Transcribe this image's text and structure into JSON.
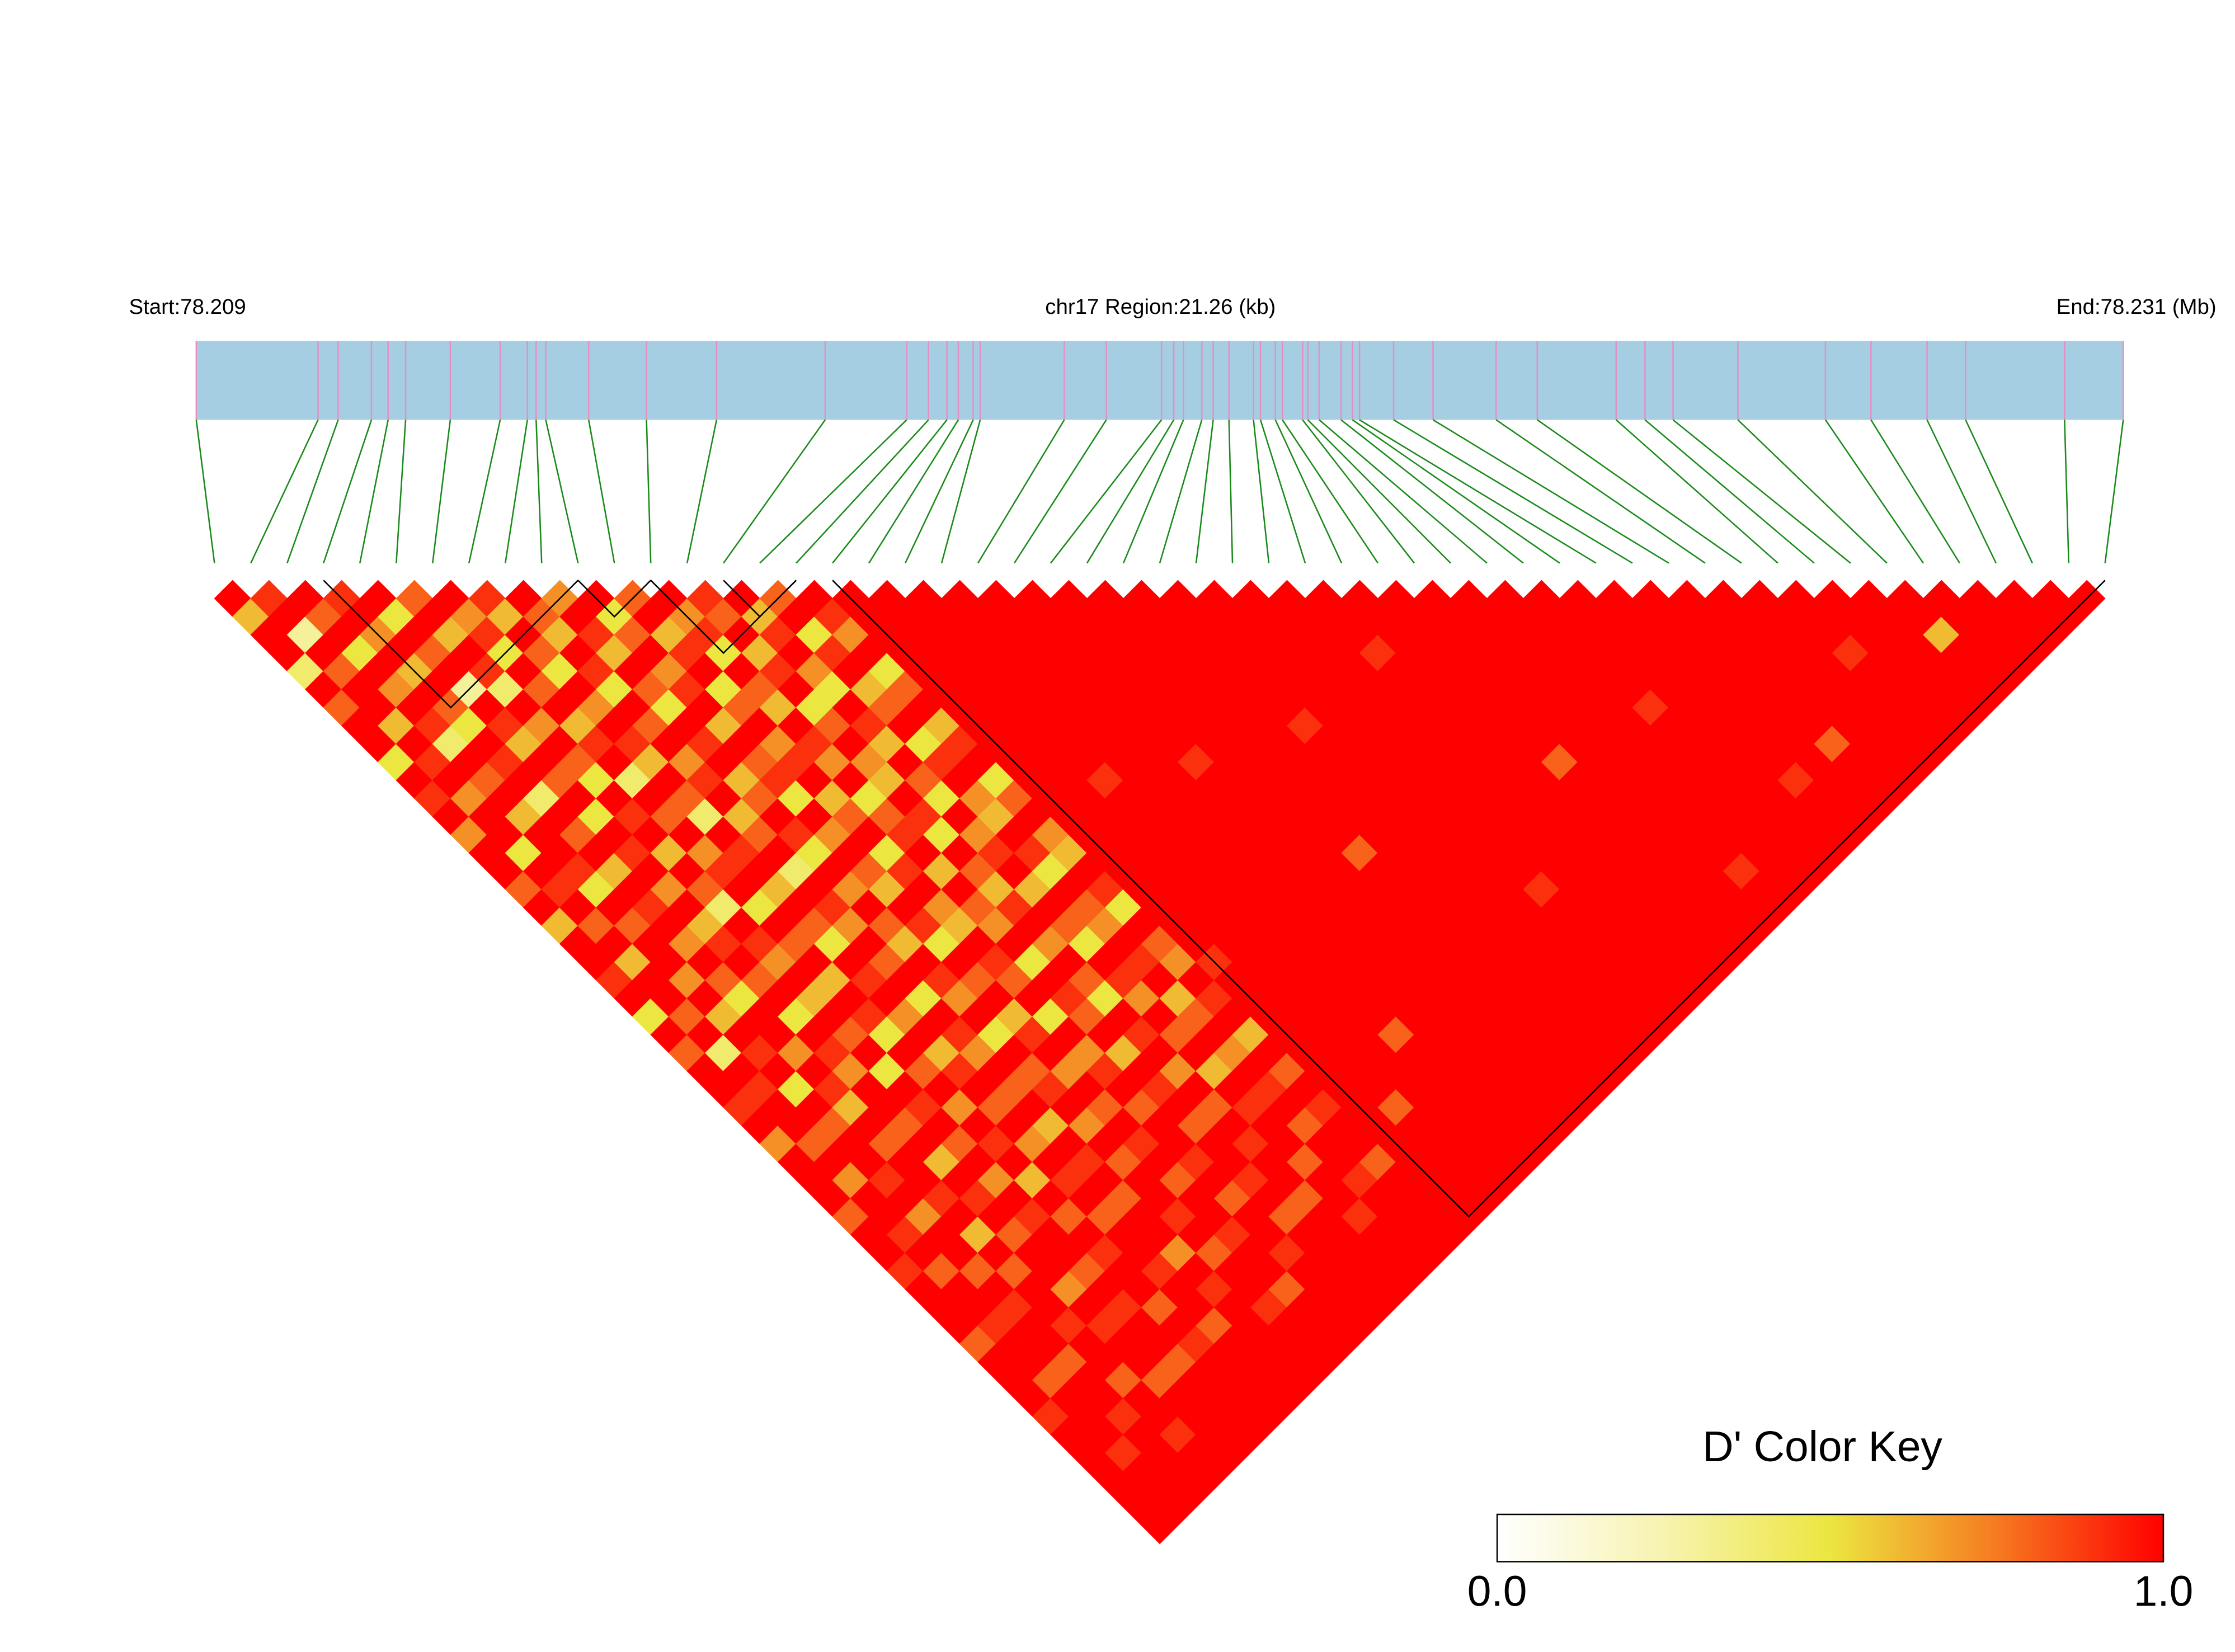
{
  "chart_data": {
    "type": "ld_heatmap",
    "start_label": "Start:78.209",
    "region_label": "chr17 Region:21.26 (kb)",
    "end_label": "End:78.231 (Mb)",
    "xlim": [
      78.209,
      78.231
    ],
    "bar_color": "#a6cee3",
    "snp_tick_color": "#e58fc4",
    "connector_color": "#1a8a1a",
    "block_color": "#000000",
    "snp_positions": [
      78.209,
      78.21039,
      78.21062,
      78.211,
      78.21119,
      78.21139,
      78.2119,
      78.21247,
      78.21278,
      78.21288,
      78.21299,
      78.21348,
      78.21414,
      78.21494,
      78.21618,
      78.21711,
      78.21736,
      78.21757,
      78.2177,
      78.21787,
      78.21795,
      78.21891,
      78.21939,
      78.22002,
      78.22016,
      78.22027,
      78.22048,
      78.22061,
      78.22079,
      78.22107,
      78.22115,
      78.22132,
      78.2214,
      78.22163,
      78.22169,
      78.22182,
      78.22207,
      78.2222,
      78.22228,
      78.22267,
      78.22312,
      78.22384,
      78.22431,
      78.22521,
      78.22554,
      78.22586,
      78.2266,
      78.2276,
      78.22812,
      78.22876,
      78.2292,
      78.23033,
      78.231
    ],
    "blocks": [
      [
        3,
        10
      ],
      [
        10,
        12
      ],
      [
        12,
        16
      ],
      [
        14,
        16
      ],
      [
        17,
        52
      ]
    ],
    "ld": [
      [
        1,
        0.6,
        1,
        1,
        0.4,
        1,
        0.8,
        1,
        1,
        0.5,
        1,
        0.9,
        1,
        0.7,
        1,
        1,
        0.8,
        1,
        0.6,
        1,
        1,
        0.9,
        1,
        0.5,
        1,
        0.8,
        1,
        1,
        0.9,
        1,
        0.7,
        1,
        1,
        1,
        0.8,
        1,
        1,
        0.9,
        1,
        1,
        1,
        0.8,
        1,
        1,
        1,
        0.9,
        1,
        1,
        1,
        1,
        1,
        1
      ],
      [
        0.9,
        1,
        0.3,
        1,
        0.8,
        1,
        1,
        0.6,
        1,
        0.9,
        1,
        0.7,
        1,
        1,
        0.5,
        1,
        0.9,
        1,
        0.8,
        1,
        0.6,
        1,
        1,
        0.8,
        1,
        0.4,
        1,
        0.9,
        1,
        1,
        0.8,
        1,
        0.7,
        1,
        1,
        0.9,
        1,
        0.8,
        1,
        1,
        0.9,
        1,
        1,
        0.8,
        1,
        1,
        1,
        0.9,
        1,
        1,
        1
      ],
      [
        1,
        0.8,
        1,
        0.5,
        1,
        0.7,
        1,
        0.9,
        0.4,
        1,
        0.8,
        1,
        0.6,
        1,
        1,
        0.9,
        0.5,
        1,
        0.8,
        1,
        1,
        0.7,
        1,
        0.6,
        1,
        0.9,
        1,
        0.5,
        1,
        0.8,
        1,
        1,
        0.9,
        1,
        0.7,
        1,
        1,
        0.8,
        1,
        0.9,
        1,
        1,
        0.8,
        1,
        1,
        0.9,
        1,
        1,
        1,
        1
      ],
      [
        0.9,
        1,
        0.7,
        1,
        0.6,
        1,
        0.8,
        0.5,
        1,
        0.9,
        1,
        0.4,
        1,
        0.8,
        1,
        0.6,
        1,
        0.9,
        1,
        0.7,
        1,
        0.8,
        0.5,
        1,
        1,
        0.7,
        1,
        0.9,
        0.6,
        1,
        0.8,
        1,
        1,
        0.9,
        1,
        0.6,
        1,
        0.8,
        1,
        1,
        0.9,
        1,
        1,
        0.8,
        1,
        1,
        0.9,
        1,
        1
      ],
      [
        1,
        0.5,
        1,
        0.8,
        1,
        0.3,
        1,
        0.9,
        0.6,
        1,
        0.8,
        1,
        0.5,
        1,
        0.9,
        1,
        0.7,
        1,
        0.6,
        0.9,
        1,
        0.8,
        1,
        0.5,
        1,
        0.9,
        0.7,
        1,
        1,
        0.8,
        1,
        0.6,
        1,
        0.9,
        1,
        0.8,
        1,
        1,
        0.7,
        1,
        0.9,
        1,
        1,
        0.8,
        1,
        1,
        1,
        1
      ],
      [
        0.8,
        1,
        0.6,
        1,
        0.9,
        0.4,
        1,
        0.7,
        1,
        0.8,
        0.5,
        1,
        0.9,
        1,
        0.6,
        1,
        0.8,
        0.4,
        1,
        0.9,
        0.7,
        1,
        0.6,
        1,
        0.8,
        1,
        0.5,
        1,
        0.9,
        1,
        0.8,
        1,
        0.7,
        1,
        0.9,
        1,
        1,
        0.8,
        1,
        0.9,
        1,
        1,
        0.8,
        1,
        1,
        1,
        1
      ],
      [
        1,
        0.7,
        0.9,
        0.5,
        1,
        0.8,
        1,
        0.6,
        0.9,
        1,
        0.4,
        1,
        0.8,
        1,
        0.7,
        0.9,
        1,
        0.5,
        1,
        0.8,
        1,
        0.6,
        1,
        0.9,
        0.5,
        1,
        0.8,
        1,
        0.7,
        1,
        0.9,
        1,
        0.6,
        1,
        0.8,
        1,
        0.9,
        1,
        1,
        0.8,
        1,
        0.9,
        1,
        1,
        1,
        1
      ],
      [
        0.9,
        0.6,
        1,
        0.8,
        0.5,
        1,
        0.7,
        1,
        0.9,
        0.6,
        1,
        0.8,
        0.4,
        1,
        0.9,
        1,
        0.6,
        1,
        0.8,
        0.5,
        1,
        0.9,
        1,
        0.7,
        1,
        0.6,
        0.9,
        1,
        0.8,
        1,
        0.7,
        1,
        0.9,
        1,
        0.8,
        1,
        1,
        0.9,
        1,
        1,
        0.8,
        1,
        1,
        1,
        1
      ],
      [
        1,
        0.8,
        0.6,
        1,
        0.9,
        0.5,
        1,
        0.8,
        1,
        0.7,
        0.9,
        1,
        0.6,
        0.8,
        1,
        0.4,
        1,
        0.9,
        0.7,
        1,
        0.8,
        1,
        0.5,
        1,
        0.9,
        0.7,
        1,
        0.8,
        1,
        0.6,
        1,
        0.9,
        1,
        0.8,
        1,
        1,
        0.7,
        1,
        0.9,
        1,
        1,
        1,
        1,
        1
      ],
      [
        0.7,
        1,
        0.9,
        0.6,
        1,
        0.8,
        0.5,
        1,
        0.9,
        1,
        0.6,
        0.8,
        1,
        0.9,
        0.5,
        1,
        0.7,
        1,
        0.8,
        0.6,
        1,
        0.9,
        0.7,
        1,
        0.5,
        1,
        0.8,
        0.9,
        1,
        0.7,
        1,
        0.8,
        1,
        1,
        0.9,
        1,
        0.8,
        1,
        1,
        0.9,
        1,
        1,
        1
      ],
      [
        1,
        0.5,
        0.8,
        1,
        0.7,
        0.9,
        1,
        0.6,
        1,
        0.8,
        0.9,
        0.5,
        1,
        0.7,
        1,
        0.8,
        0.6,
        1,
        0.9,
        0.5,
        1,
        0.8,
        1,
        0.6,
        0.9,
        1,
        0.7,
        1,
        0.8,
        1,
        0.9,
        1,
        0.8,
        1,
        1,
        0.9,
        1,
        1,
        0.8,
        1,
        1,
        1
      ],
      [
        0.8,
        1,
        0.6,
        0.9,
        1,
        0.5,
        0.8,
        1,
        0.7,
        0.9,
        1,
        0.6,
        0.8,
        1,
        0.5,
        0.9,
        1,
        0.7,
        0.6,
        1,
        0.9,
        0.8,
        1,
        0.5,
        1,
        0.7,
        0.9,
        1,
        0.8,
        1,
        1,
        0.9,
        1,
        0.8,
        1,
        1,
        0.9,
        1,
        1,
        1,
        1
      ],
      [
        1,
        0.7,
        0.9,
        0.5,
        1,
        0.8,
        0.6,
        1,
        0.9,
        0.7,
        1,
        0.5,
        0.8,
        0.9,
        1,
        0.6,
        1,
        0.8,
        0.7,
        1,
        0.5,
        1,
        0.9,
        0.8,
        1,
        0.6,
        1,
        0.9,
        1,
        0.8,
        1,
        1,
        0.9,
        1,
        0.8,
        1,
        1,
        1,
        1,
        1
      ],
      [
        0.9,
        0.8,
        1,
        0.6,
        0.9,
        1,
        0.5,
        0.8,
        1,
        0.7,
        0.6,
        1,
        0.9,
        0.5,
        1,
        0.8,
        0.6,
        0.9,
        1,
        0.7,
        1,
        0.8,
        0.5,
        1,
        0.9,
        1,
        0.7,
        1,
        0.8,
        1,
        0.9,
        1,
        1,
        0.8,
        1,
        1,
        1,
        1,
        1
      ],
      [
        1,
        0.6,
        0.9,
        1,
        0.7,
        0.5,
        1,
        0.9,
        0.6,
        1,
        0.8,
        0.5,
        1,
        0.7,
        0.9,
        1,
        0.6,
        1,
        0.8,
        0.5,
        1,
        0.9,
        0.7,
        1,
        0.8,
        1,
        0.6,
        1,
        0.9,
        1,
        1,
        0.8,
        1,
        1,
        0.9,
        1,
        1,
        1
      ],
      [
        0.8,
        1,
        0.5,
        0.9,
        1,
        0.6,
        0.8,
        1,
        0.5,
        0.9,
        1,
        0.7,
        0.6,
        1,
        0.9,
        0.5,
        1,
        0.8,
        0.7,
        1,
        0.9,
        1,
        0.6,
        0.8,
        1,
        0.7,
        1,
        0.9,
        1,
        0.8,
        1,
        1,
        0.9,
        1,
        1,
        1,
        1
      ],
      [
        1,
        0.9,
        0.7,
        1,
        0.5,
        0.8,
        1,
        0.6,
        0.9,
        1,
        0.5,
        0.8,
        1,
        0.7,
        0.6,
        1,
        0.9,
        0.5,
        1,
        0.8,
        0.7,
        1,
        0.9,
        1,
        0.6,
        1,
        0.8,
        1,
        0.9,
        1,
        1,
        0.8,
        1,
        1,
        1,
        1
      ],
      [
        1,
        1,
        1,
        1,
        1,
        1,
        1,
        1,
        1,
        1,
        1,
        1,
        1,
        1,
        1,
        1,
        1,
        1,
        1,
        1,
        0.9,
        1,
        1,
        1,
        1,
        1,
        1,
        1,
        1,
        1,
        1,
        1,
        1,
        1,
        1
      ],
      [
        1,
        1,
        1,
        1,
        1,
        1,
        1,
        1,
        1,
        1,
        1,
        1,
        1,
        1,
        1,
        1,
        1,
        1,
        1,
        1,
        1,
        1,
        1,
        1,
        1,
        1,
        1,
        1,
        0.8,
        1,
        1,
        1,
        1,
        1
      ],
      [
        1,
        1,
        1,
        1,
        1,
        1,
        1,
        1,
        1,
        1,
        0.9,
        1,
        1,
        1,
        1,
        1,
        1,
        1,
        1,
        1,
        1,
        1,
        1,
        1,
        1,
        1,
        1,
        1,
        1,
        1,
        1,
        1,
        1
      ],
      [
        1,
        1,
        1,
        1,
        1,
        1,
        1,
        1,
        1,
        1,
        1,
        1,
        1,
        1,
        1,
        1,
        1,
        1,
        1,
        1,
        1,
        1,
        1,
        1,
        0.8,
        1,
        1,
        1,
        1,
        1,
        1,
        1
      ],
      [
        1,
        1,
        1,
        1,
        1,
        1,
        1,
        1,
        1,
        1,
        1,
        1,
        1,
        1,
        1,
        1,
        1,
        1,
        1,
        1,
        1,
        1,
        1,
        1,
        1,
        1,
        1,
        1,
        1,
        1,
        1
      ],
      [
        1,
        1,
        1,
        1,
        1,
        1,
        1,
        1,
        1,
        0.9,
        1,
        1,
        1,
        1,
        1,
        1,
        1,
        1,
        1,
        1,
        1,
        1,
        1,
        1,
        1,
        1,
        1,
        1,
        1,
        1
      ],
      [
        1,
        1,
        1,
        1,
        1,
        1,
        1,
        1,
        1,
        1,
        1,
        1,
        1,
        1,
        1,
        1,
        1,
        1,
        1,
        1,
        1,
        1,
        1,
        1,
        1,
        1,
        1,
        1,
        1
      ],
      [
        1,
        1,
        1,
        1,
        1,
        1,
        1,
        1,
        1,
        1,
        1,
        1,
        1,
        1,
        0.8,
        1,
        1,
        1,
        1,
        1,
        1,
        1,
        1,
        1,
        1,
        1,
        1,
        1
      ],
      [
        1,
        1,
        1,
        1,
        1,
        1,
        1,
        1,
        1,
        1,
        1,
        1,
        1,
        1,
        1,
        1,
        1,
        1,
        1,
        1,
        1,
        1,
        1,
        1,
        1,
        1,
        1
      ],
      [
        1,
        1,
        1,
        1,
        1,
        1,
        1,
        0.9,
        1,
        1,
        1,
        1,
        1,
        1,
        1,
        1,
        1,
        1,
        1,
        1,
        1,
        1,
        1,
        1,
        1,
        1
      ],
      [
        1,
        1,
        1,
        1,
        1,
        1,
        1,
        1,
        1,
        1,
        1,
        1,
        1,
        1,
        1,
        1,
        1,
        1,
        1,
        1,
        1,
        1,
        1,
        1,
        1
      ],
      [
        1,
        1,
        1,
        1,
        1,
        1,
        1,
        1,
        1,
        1,
        1,
        1,
        1,
        1,
        1,
        1,
        0.9,
        1,
        1,
        1,
        1,
        1,
        1,
        1
      ],
      [
        1,
        1,
        1,
        1,
        1,
        1,
        1,
        1,
        1,
        1,
        1,
        1,
        1,
        1,
        1,
        1,
        1,
        1,
        1,
        1,
        1,
        1,
        1
      ],
      [
        1,
        1,
        1,
        0.9,
        1,
        1,
        1,
        1,
        1,
        1,
        1,
        1,
        1,
        1,
        1,
        1,
        1,
        1,
        1,
        1,
        1,
        1
      ],
      [
        1,
        1,
        1,
        1,
        1,
        1,
        1,
        1,
        1,
        1,
        1,
        1,
        1,
        1,
        1,
        1,
        1,
        1,
        1,
        1,
        1
      ],
      [
        1,
        1,
        1,
        1,
        1,
        1,
        1,
        1,
        1,
        0.8,
        1,
        1,
        1,
        1,
        1,
        1,
        1,
        1,
        1,
        1
      ],
      [
        1,
        1,
        1,
        1,
        1,
        1,
        1,
        1,
        1,
        1,
        1,
        1,
        1,
        1,
        1,
        1,
        1,
        1,
        1
      ],
      [
        1,
        1,
        1,
        1,
        1,
        1,
        1,
        1,
        1,
        1,
        1,
        1,
        1,
        1,
        1,
        0.9,
        1,
        1
      ],
      [
        1,
        1,
        1,
        1,
        1,
        1,
        1,
        1,
        1,
        1,
        1,
        1,
        1,
        1,
        1,
        1,
        1
      ],
      [
        1,
        1,
        1,
        1,
        1,
        1,
        0.9,
        1,
        1,
        1,
        1,
        1,
        1,
        1,
        1,
        1
      ],
      [
        1,
        1,
        1,
        1,
        1,
        1,
        1,
        1,
        1,
        1,
        1,
        1,
        1,
        1,
        1
      ],
      [
        1,
        1,
        1,
        1,
        1,
        1,
        1,
        1,
        1,
        1,
        0.9,
        1,
        1,
        1
      ],
      [
        1,
        1,
        1,
        1,
        1,
        1,
        1,
        1,
        1,
        1,
        1,
        1,
        1
      ],
      [
        1,
        1,
        1,
        1,
        1,
        1,
        1,
        1,
        0.8,
        1,
        1,
        1
      ],
      [
        1,
        1,
        1,
        1,
        1,
        1,
        1,
        1,
        1,
        1,
        1
      ],
      [
        1,
        1,
        1,
        1,
        1,
        1,
        1,
        1,
        1,
        1
      ],
      [
        1,
        1,
        1,
        0.9,
        1,
        1,
        1,
        1,
        1
      ],
      [
        1,
        1,
        1,
        1,
        1,
        1,
        1,
        1
      ],
      [
        1,
        1,
        1,
        1,
        1,
        1,
        1
      ],
      [
        1,
        1,
        0.6,
        1,
        1,
        1
      ],
      [
        1,
        1,
        1,
        1,
        1
      ],
      [
        1,
        1,
        1,
        1
      ],
      [
        1,
        1,
        1
      ],
      [
        1,
        1
      ],
      [
        1
      ]
    ],
    "colorbar": {
      "title": "D' Color Key",
      "lim": [
        0,
        1
      ],
      "ticks": [
        {
          "value": 0,
          "label": "0.0"
        },
        {
          "value": 1,
          "label": "1.0"
        }
      ],
      "colors": [
        "#ffffff",
        "#f7f3b0",
        "#ece640",
        "#f67a20",
        "#ff0000"
      ]
    }
  }
}
